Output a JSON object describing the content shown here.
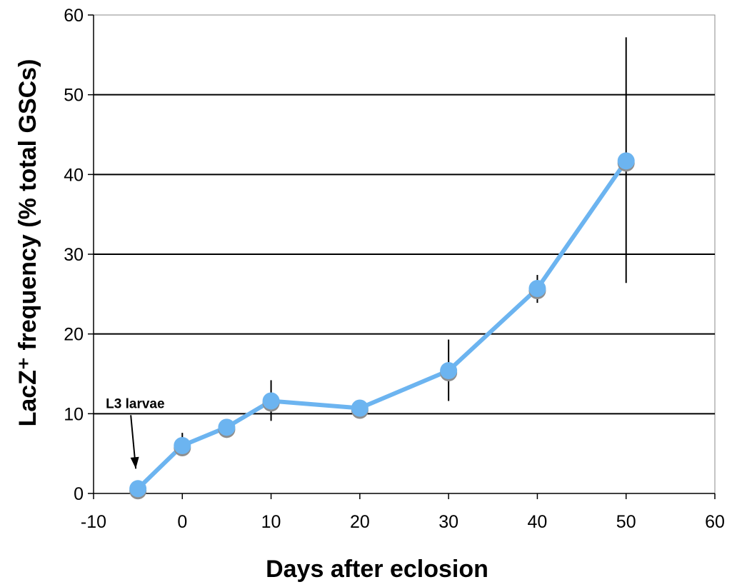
{
  "chart_data": {
    "type": "line",
    "title": "",
    "xlabel": "Days after eclosion",
    "ylabel": "LacZ⁺ frequency (% total GSCs)",
    "xlim": [
      -10,
      60
    ],
    "ylim": [
      0,
      60
    ],
    "xticks": [
      -10,
      0,
      10,
      20,
      30,
      40,
      50,
      60
    ],
    "yticks": [
      0,
      10,
      20,
      30,
      40,
      50,
      60
    ],
    "grid": "horizontal",
    "legend": "none",
    "series": [
      {
        "color": "#6cb4f0",
        "points": [
          {
            "x": -5,
            "y": 0.6,
            "err_low": null,
            "err_high": null
          },
          {
            "x": 0,
            "y": 6.0,
            "err_low": 4.8,
            "err_high": 7.6
          },
          {
            "x": 5,
            "y": 8.3,
            "err_low": null,
            "err_high": null
          },
          {
            "x": 10,
            "y": 11.6,
            "err_low": 9.1,
            "err_high": 14.2
          },
          {
            "x": 20,
            "y": 10.7,
            "err_low": null,
            "err_high": null
          },
          {
            "x": 30,
            "y": 15.4,
            "err_low": 11.6,
            "err_high": 19.3
          },
          {
            "x": 40,
            "y": 25.7,
            "err_low": 23.9,
            "err_high": 27.4
          },
          {
            "x": 50,
            "y": 41.7,
            "err_low": 26.4,
            "err_high": 57.2
          }
        ]
      }
    ],
    "annotations": [
      {
        "text": "L3 larvae",
        "x": -5,
        "y": 0.6
      }
    ]
  }
}
